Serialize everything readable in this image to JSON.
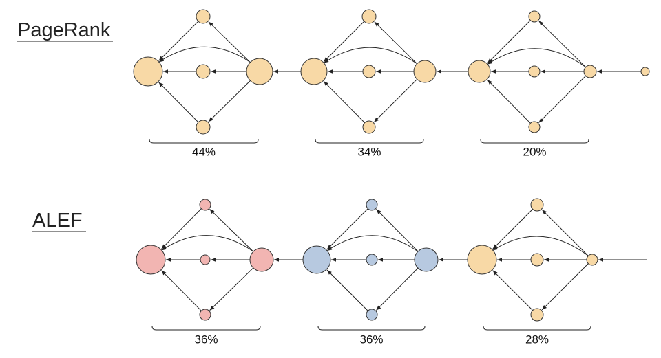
{
  "rows": [
    {
      "label": "PageRank",
      "groups": [
        {
          "share": "44%"
        },
        {
          "share": "34%"
        },
        {
          "share": "20%"
        }
      ]
    },
    {
      "label": "ALEF",
      "groups": [
        {
          "share": "36%"
        },
        {
          "share": "36%"
        },
        {
          "share": "28%"
        }
      ]
    }
  ]
}
